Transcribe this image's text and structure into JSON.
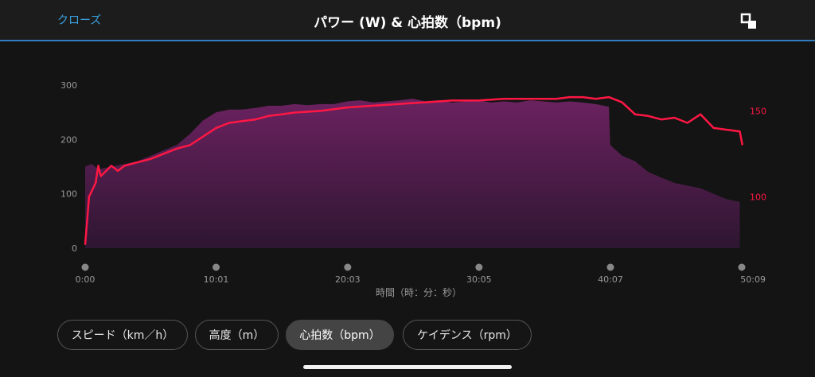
{
  "header": {
    "close_label": "クローズ",
    "title": "パワー (W) & 心拍数（bpm)",
    "expand_icon": "expand-icon"
  },
  "colors": {
    "accent": "#2f7fc0",
    "power_fill_top": "#6b2260",
    "power_fill_bottom": "#2e1631",
    "heart_rate_line": "#ff1744"
  },
  "chart_data": {
    "type": "area",
    "title": "パワー (W) & 心拍数（bpm)",
    "xlabel": "時間（時：分：秒）",
    "x_tick_labels": [
      "0:00",
      "10:01",
      "20:03",
      "30:05",
      "40:07",
      "50:09"
    ],
    "x_tick_values_min": [
      0,
      10.0,
      20.05,
      30.08,
      40.12,
      50.15
    ],
    "xlim_min": [
      0,
      50.15
    ],
    "left_axis": {
      "label": "",
      "ticks": [
        0,
        100,
        200,
        300
      ],
      "ylim": [
        0,
        300
      ]
    },
    "right_axis": {
      "label": "",
      "ticks": [
        100,
        150
      ],
      "ylim": [
        70,
        165
      ]
    },
    "grid": false,
    "series": [
      {
        "name": "パワー (W)",
        "axis": "left",
        "type": "area",
        "x_min": [
          0,
          0.5,
          1,
          2,
          3,
          4,
          5,
          6,
          7,
          8,
          9,
          10,
          11,
          12,
          13,
          14,
          15,
          16,
          17,
          18,
          19,
          20,
          21,
          22,
          23,
          24,
          25,
          26,
          27,
          28,
          29,
          30,
          31,
          32,
          33,
          34,
          35,
          36,
          37,
          38,
          39,
          40,
          40.1,
          41,
          42,
          43,
          44,
          45,
          46,
          47,
          48,
          49,
          50
        ],
        "values": [
          150,
          155,
          145,
          150,
          155,
          160,
          170,
          180,
          190,
          210,
          235,
          250,
          255,
          255,
          258,
          262,
          262,
          265,
          263,
          265,
          265,
          270,
          272,
          268,
          270,
          272,
          275,
          270,
          272,
          268,
          270,
          272,
          268,
          270,
          268,
          272,
          270,
          268,
          270,
          268,
          265,
          260,
          190,
          170,
          160,
          140,
          130,
          120,
          115,
          110,
          100,
          90,
          85
        ]
      },
      {
        "name": "心拍数 (bpm)",
        "axis": "right",
        "type": "line",
        "x_min": [
          0,
          0.3,
          0.8,
          1,
          1.2,
          1.6,
          2,
          2.5,
          3,
          4,
          5,
          6,
          7,
          8,
          9,
          10,
          11,
          12,
          13,
          14,
          15,
          16,
          18,
          20,
          22,
          24,
          26,
          28,
          30,
          32,
          34,
          36,
          37,
          38,
          39,
          40,
          41,
          42,
          43,
          44,
          45,
          46,
          47,
          48,
          49,
          50,
          50.2
        ],
        "values": [
          72,
          100,
          108,
          118,
          112,
          115,
          118,
          115,
          118,
          120,
          122,
          125,
          128,
          130,
          135,
          140,
          143,
          144,
          145,
          147,
          148,
          149,
          150,
          152,
          153,
          154,
          155,
          156,
          156,
          157,
          157,
          157,
          158,
          158,
          157,
          158,
          155,
          148,
          147,
          145,
          146,
          143,
          148,
          140,
          139,
          138,
          130
        ]
      }
    ]
  },
  "pills": [
    {
      "label": "スピード（km／h）",
      "active": false
    },
    {
      "label": "高度（m）",
      "active": false
    },
    {
      "label": "心拍数（bpm）",
      "active": true
    },
    {
      "label": "ケイデンス（rpm）",
      "active": false
    }
  ]
}
